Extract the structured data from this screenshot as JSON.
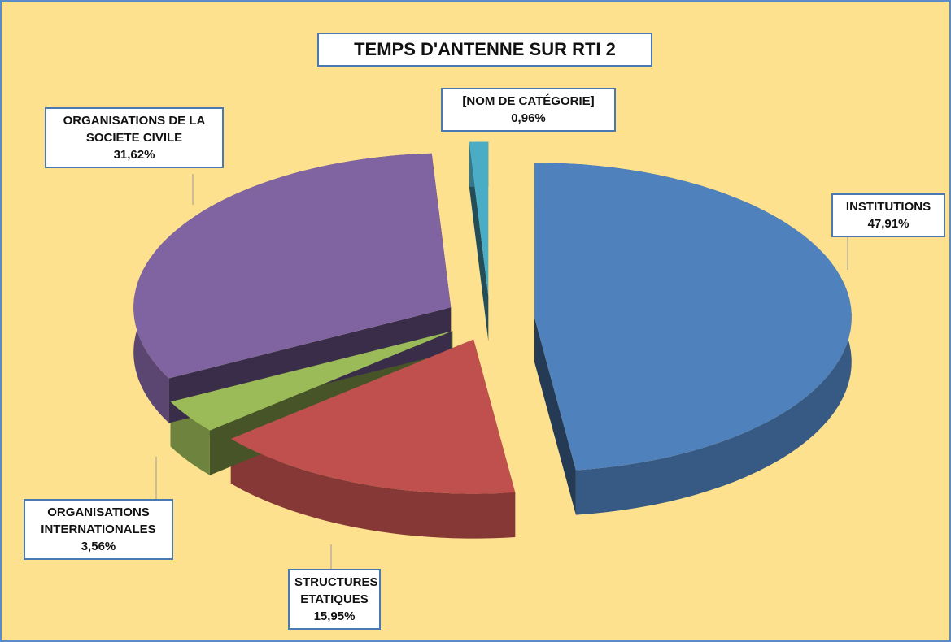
{
  "chart_data": {
    "type": "pie",
    "title": "TEMPS D'ANTENNE SUR RTI 2",
    "categories": [
      "INSTITUTIONS",
      "STRUCTURES ETATIQUES",
      "ORGANISATIONS INTERNATIONALES",
      "ORGANISATIONS DE LA SOCIETE CIVILE",
      "[NOM DE CATÉGORIE]"
    ],
    "values": [
      47.91,
      15.95,
      3.56,
      31.62,
      0.96
    ],
    "value_labels": [
      "47,91%",
      "15,95%",
      "3,56%",
      "31,62%",
      "0,96%"
    ],
    "colors": [
      "#4f81bd",
      "#c0504d",
      "#9bbb59",
      "#8064a2",
      "#4bacc6"
    ]
  }
}
